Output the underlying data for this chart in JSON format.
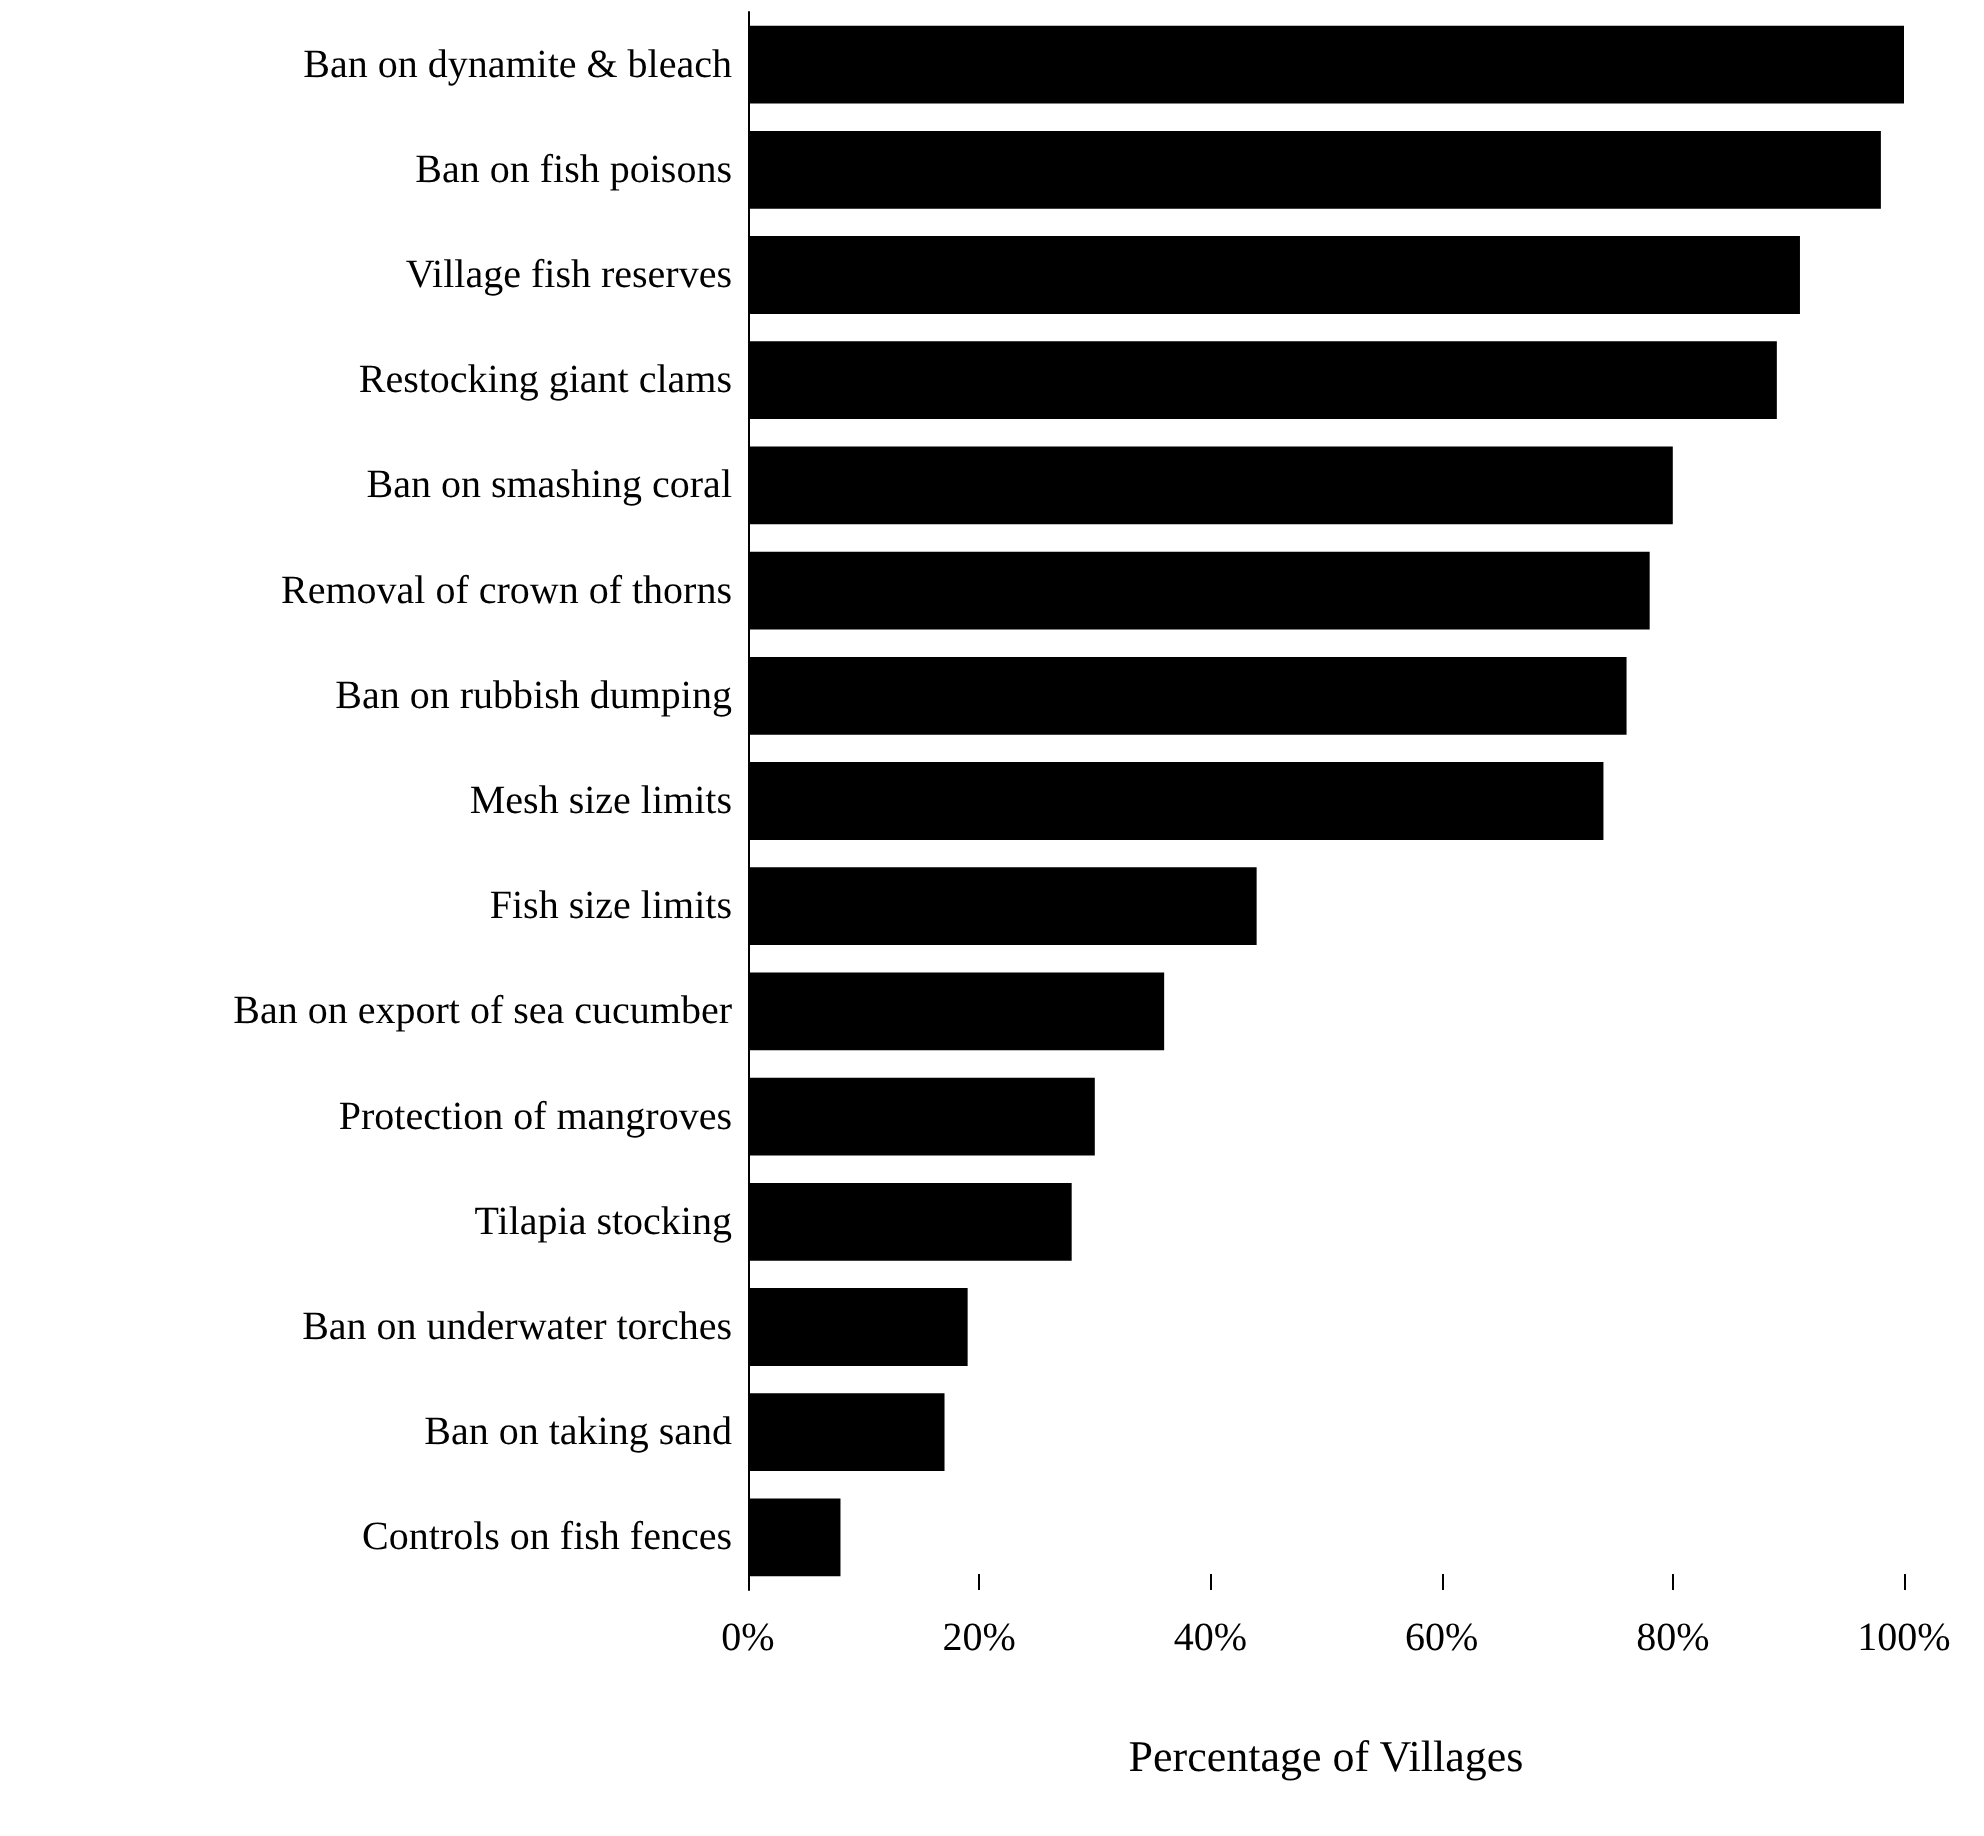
{
  "chart_data": {
    "type": "bar",
    "orientation": "horizontal",
    "xlabel": "Percentage of Villages",
    "categories": [
      "Ban on dynamite & bleach",
      "Ban on fish poisons",
      "Village fish reserves",
      "Restocking giant clams",
      "Ban on smashing coral",
      "Removal of crown of thorns",
      "Ban on rubbish dumping",
      "Mesh size limits",
      "Fish size limits",
      "Ban on export of sea cucumber",
      "Protection of mangroves",
      "Tilapia stocking",
      "Ban on underwater torches",
      "Ban on taking sand",
      "Controls on fish fences"
    ],
    "values": [
      100,
      98,
      91,
      89,
      80,
      78,
      76,
      74,
      44,
      36,
      30,
      28,
      19,
      17,
      8
    ],
    "color": "#000000",
    "xlim": [
      0,
      100
    ],
    "xticks": [
      {
        "value": 0,
        "label": "0%"
      },
      {
        "value": 20,
        "label": "20%"
      },
      {
        "value": 40,
        "label": "40%"
      },
      {
        "value": 60,
        "label": "60%"
      },
      {
        "value": 80,
        "label": "80%"
      },
      {
        "value": 100,
        "label": "100%"
      }
    ],
    "grid": false
  }
}
